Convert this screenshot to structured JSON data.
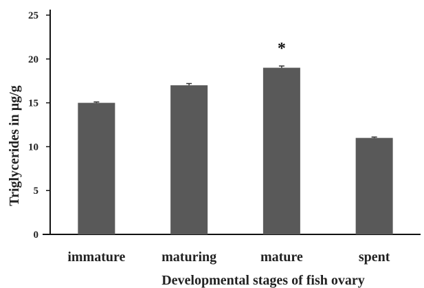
{
  "chart_data": {
    "type": "bar",
    "title": "",
    "xlabel": "Developmental stages of fish ovary",
    "ylabel": "Triglycerides in µg/g",
    "categories": [
      "immature",
      "maturing",
      "mature",
      "spent"
    ],
    "values": [
      15.0,
      17.0,
      19.0,
      11.0
    ],
    "errors": [
      0.1,
      0.2,
      0.2,
      0.1
    ],
    "annotations": [
      "",
      "",
      "*",
      ""
    ],
    "ylim": [
      0,
      25
    ],
    "yticks": [
      "0",
      "5",
      "10",
      "15",
      "20",
      "25"
    ],
    "grid": false,
    "legend": "none",
    "colors": {
      "bar": "#595959",
      "axis": "#111111"
    }
  }
}
